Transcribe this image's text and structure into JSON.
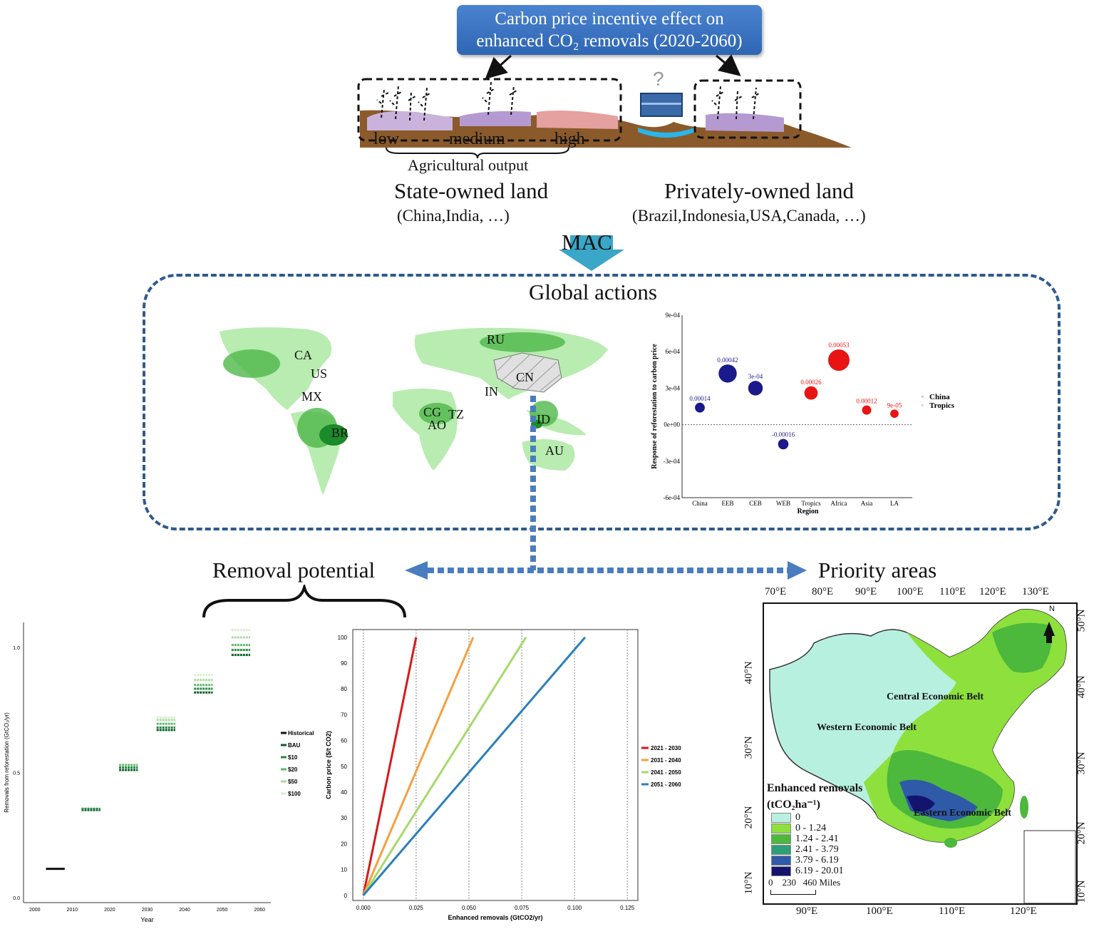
{
  "header": {
    "title_line1": "Carbon price incentive effect on",
    "title_line2": "enhanced CO₂ removals (2020-2060)"
  },
  "landscape": {
    "question_mark": "?",
    "labels": {
      "low": "low",
      "medium": "medium",
      "high": "high"
    },
    "agri_label": "Agricultural output",
    "state_title": "State-owned land",
    "state_examples": "(China,India, …)",
    "private_title": "Privately-owned land",
    "private_examples": "(Brazil,Indonesia,USA,Canada, …)"
  },
  "mac_label": "MAC",
  "global": {
    "title": "Global actions",
    "countries": [
      "CA",
      "US",
      "MX",
      "BR",
      "RU",
      "CN",
      "IN",
      "CG",
      "TZ",
      "AO",
      "ID",
      "AU"
    ]
  },
  "bubble_chart": {
    "ylabel": "Response of reforestation to carbon price",
    "xlabel": "Region",
    "yticks": [
      "9e-04",
      "6e-04",
      "3e-04",
      "0e+00",
      "-3e-04",
      "-6e-04"
    ],
    "legend": [
      {
        "name": "China",
        "color": "#1a1a8c"
      },
      {
        "name": "Tropics",
        "color": "#e81414"
      }
    ]
  },
  "links": {
    "removal": "Removal potential",
    "priority": "Priority areas"
  },
  "removal_chart": {
    "xlabel": "Year",
    "ylabel": "Removals from reforestation (GtCO₂/yr)",
    "xticks": [
      "2000",
      "2010",
      "2020",
      "2030",
      "2040",
      "2050",
      "2060"
    ],
    "yticks": [
      "1.0",
      "0.5",
      "0.0"
    ],
    "legend": [
      "Historical",
      "BAU",
      "$10",
      "$20",
      "$50",
      "$100"
    ]
  },
  "price_chart": {
    "xlabel": "Enhanced removals (GtCO2/yr)",
    "ylabel": "Carbon price ($/t CO2)",
    "xticks": [
      "0.000",
      "0.025",
      "0.050",
      "0.075",
      "0.100",
      "0.125"
    ],
    "yticks": [
      "100",
      "90",
      "80",
      "70",
      "60",
      "50",
      "40",
      "30",
      "20",
      "10",
      "0"
    ],
    "legend": [
      {
        "name": "2021 - 2030",
        "color": "#d7191c"
      },
      {
        "name": "2031 - 2040",
        "color": "#f5a040"
      },
      {
        "name": "2041 - 2050",
        "color": "#a6d96a"
      },
      {
        "name": "2051 - 2060",
        "color": "#2c7fb8"
      }
    ]
  },
  "china_map": {
    "top_ticks": [
      "70°E",
      "80°E",
      "90°E",
      "100°E",
      "110°E",
      "120°E",
      "130°E"
    ],
    "bottom_ticks": [
      "90°E",
      "100°E",
      "110°E",
      "120°E"
    ],
    "left_ticks": [
      "40°N",
      "30°N",
      "20°N",
      "10°N"
    ],
    "right_ticks": [
      "50°N",
      "40°N",
      "30°N",
      "20°N",
      "10°N"
    ],
    "belts": {
      "central": "Central Economic Belt",
      "western": "Western Economic Belt",
      "eastern": "Eastern Economic Belt"
    },
    "north": "N",
    "legend_title1": "Enhanced removals",
    "legend_title2": "(tCO₂ha⁻¹)",
    "legend_items": [
      {
        "label": "0",
        "color": "#b8f0e0"
      },
      {
        "label": "0 - 1.24",
        "color": "#8ee03c"
      },
      {
        "label": "1.24 - 2.41",
        "color": "#4cb83c"
      },
      {
        "label": "2.41 - 3.79",
        "color": "#2e9e78"
      },
      {
        "label": "3.79 - 6.19",
        "color": "#2e5aa8"
      },
      {
        "label": "6.19 - 20.01",
        "color": "#14146e"
      }
    ],
    "scale_text": "0    230   460 Miles"
  },
  "chart_data": [
    {
      "type": "scatter",
      "title": "",
      "xlabel": "Region",
      "ylabel": "Response of reforestation to carbon price",
      "categories": [
        "China",
        "EEB",
        "CEB",
        "WEB",
        "Tropics",
        "Africa",
        "Asia",
        "LA"
      ],
      "ylim": [
        -0.0006,
        0.0009
      ],
      "series": [
        {
          "name": "China",
          "color": "#1a1a8c",
          "points": [
            {
              "cat": "China",
              "y": 0.00014,
              "label": "0.00014"
            },
            {
              "cat": "EEB",
              "y": 0.00042,
              "label": "0.00042"
            },
            {
              "cat": "CEB",
              "y": 0.0003,
              "label": "3e-04"
            },
            {
              "cat": "WEB",
              "y": -0.00016,
              "label": "-0.00016"
            }
          ]
        },
        {
          "name": "Tropics",
          "color": "#e81414",
          "points": [
            {
              "cat": "Tropics",
              "y": 0.00026,
              "label": "0.00026"
            },
            {
              "cat": "Africa",
              "y": 0.00053,
              "label": "0.00053"
            },
            {
              "cat": "Asia",
              "y": 0.00012,
              "label": "0.00012"
            },
            {
              "cat": "LA",
              "y": 9e-05,
              "label": "9e-05"
            }
          ]
        }
      ]
    },
    {
      "type": "scatter",
      "xlabel": "Year",
      "ylabel": "Removals from reforestation (GtCO₂/yr)",
      "xlim": [
        1997,
        2063
      ],
      "ylim": [
        -0.02,
        1.1
      ],
      "series": [
        {
          "name": "Historical",
          "color": "#111111",
          "x": [
            2003,
            2008
          ],
          "y": [
            0.115,
            0.115
          ]
        },
        {
          "name": "BAU",
          "color": "#0b5e2b",
          "points": [
            [
              2015,
              0.35
            ],
            [
              2025,
              0.51
            ],
            [
              2035,
              0.67
            ],
            [
              2045,
              0.82
            ],
            [
              2055,
              0.97
            ]
          ]
        },
        {
          "name": "$10",
          "color": "#2a8a45",
          "points": [
            [
              2015,
              0.355
            ],
            [
              2025,
              0.52
            ],
            [
              2035,
              0.68
            ],
            [
              2045,
              0.835
            ],
            [
              2055,
              0.99
            ]
          ]
        },
        {
          "name": "$20",
          "color": "#62b96a",
          "points": [
            [
              2025,
              0.53
            ],
            [
              2035,
              0.695
            ],
            [
              2045,
              0.85
            ],
            [
              2055,
              1.01
            ]
          ]
        },
        {
          "name": "$50",
          "color": "#a8dca0",
          "points": [
            [
              2035,
              0.71
            ],
            [
              2045,
              0.87
            ],
            [
              2055,
              1.04
            ]
          ]
        },
        {
          "name": "$100",
          "color": "#d6f0d0",
          "points": [
            [
              2035,
              0.72
            ],
            [
              2045,
              0.89
            ],
            [
              2055,
              1.07
            ]
          ]
        }
      ]
    },
    {
      "type": "line",
      "xlabel": "Enhanced removals (GtCO2/yr)",
      "ylabel": "Carbon price ($/t CO2)",
      "xlim": [
        -0.005,
        0.13
      ],
      "ylim": [
        -2,
        103
      ],
      "series": [
        {
          "name": "2021 - 2030",
          "color": "#d7191c",
          "x": [
            0,
            0.025
          ],
          "y": [
            0,
            100
          ]
        },
        {
          "name": "2031 - 2040",
          "color": "#f5a040",
          "x": [
            0,
            0.052
          ],
          "y": [
            0,
            100
          ]
        },
        {
          "name": "2041 - 2050",
          "color": "#a6d96a",
          "x": [
            0,
            0.077
          ],
          "y": [
            0,
            100
          ]
        },
        {
          "name": "2051 - 2060",
          "color": "#2c7fb8",
          "x": [
            0,
            0.105
          ],
          "y": [
            0,
            100
          ]
        }
      ]
    }
  ]
}
